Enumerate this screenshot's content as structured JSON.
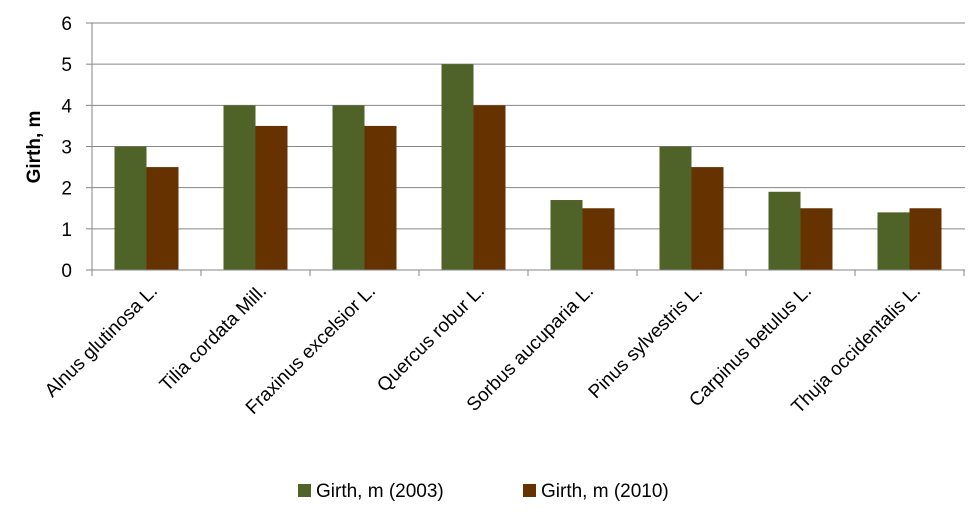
{
  "chart_data": {
    "type": "bar",
    "categories": [
      "Alnus glutinosa L.",
      "Tilia cordata Mill.",
      "Fraxinus excelsior L.",
      "Quercus robur L.",
      "Sorbus aucuparia L.",
      "Pinus sylvestris L.",
      "Carpinus betulus L.",
      "Thuja occidentalis L."
    ],
    "series": [
      {
        "name": "Girth, m (2003)",
        "color": "#4f6228",
        "values": [
          3,
          4,
          4,
          5,
          1.7,
          3,
          1.9,
          1.4
        ]
      },
      {
        "name": "Girth, m (2010)",
        "color": "#663300",
        "values": [
          2.5,
          3.5,
          3.5,
          4,
          1.5,
          2.5,
          1.5,
          1.5
        ]
      }
    ],
    "title": "",
    "xlabel": "",
    "ylabel": "Girth, m",
    "ylim": [
      0,
      6
    ],
    "yticks": [
      0,
      1,
      2,
      3,
      4,
      5,
      6
    ],
    "grid": true,
    "legend_position": "bottom"
  }
}
